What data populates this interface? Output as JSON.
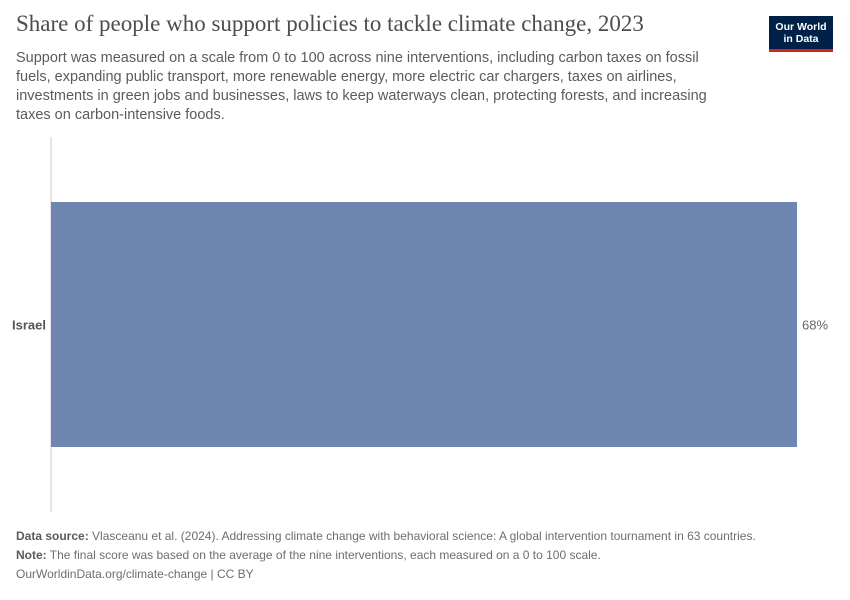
{
  "header": {
    "title": "Share of people who support policies to tackle climate change, 2023",
    "subtitle": "Support was measured on a scale from 0 to 100 across nine interventions, including carbon taxes on fossil fuels, expanding public transport, more renewable energy, more electric car chargers, taxes on airlines, investments in green jobs and businesses, laws to keep waterways clean, protecting forests, and increasing taxes on carbon-intensive foods.",
    "logo_line1": "Our World",
    "logo_line2": "in Data"
  },
  "chart_data": {
    "type": "bar",
    "orientation": "horizontal",
    "categories": [
      "Israel"
    ],
    "values": [
      68
    ],
    "value_labels": [
      "68%"
    ],
    "unit": "%",
    "bar_color": "#6f87b0",
    "xlim": [
      0,
      68
    ],
    "grid": false
  },
  "footer": {
    "source_label": "Data source:",
    "source_text": "Vlasceanu et al. (2024). Addressing climate change with behavioral science: A global intervention tournament in 63 countries.",
    "note_label": "Note:",
    "note_text": "The final score was based on the average of the nine interventions, each measured on a 0 to 100 scale.",
    "credit": "OurWorldinData.org/climate-change | CC BY"
  }
}
